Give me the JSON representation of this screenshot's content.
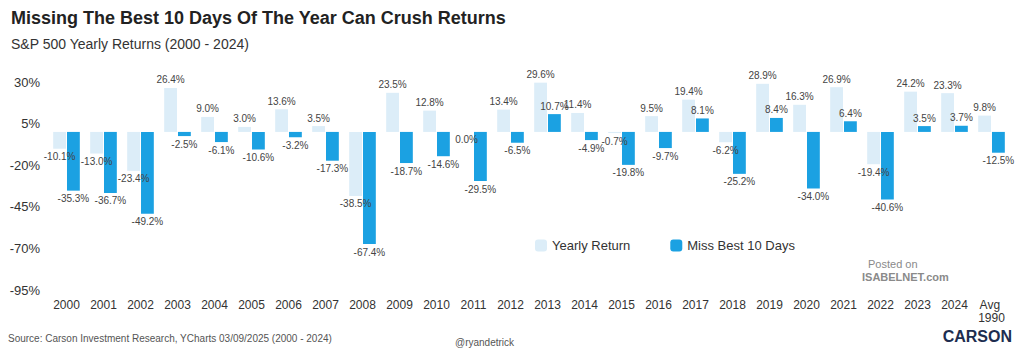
{
  "chart_data": {
    "type": "bar",
    "title": "Missing The Best 10 Days Of The Year Can Crush Returns",
    "subtitle": "S&P 500 Yearly Returns (2000 - 2024)",
    "categories": [
      "2000",
      "2001",
      "2002",
      "2003",
      "2004",
      "2005",
      "2006",
      "2007",
      "2008",
      "2009",
      "2010",
      "2011",
      "2012",
      "2013",
      "2014",
      "2015",
      "2016",
      "2017",
      "2018",
      "2019",
      "2020",
      "2021",
      "2022",
      "2023",
      "2024",
      "Avg 1990"
    ],
    "series": [
      {
        "name": "Yearly Return",
        "color": "#dcedf8",
        "values": [
          -10.1,
          -13.0,
          -23.4,
          26.4,
          9.0,
          3.0,
          13.6,
          3.5,
          -38.5,
          23.5,
          12.8,
          0.0,
          13.4,
          29.6,
          11.4,
          -0.7,
          9.5,
          19.4,
          -6.2,
          28.9,
          16.3,
          26.9,
          -19.4,
          24.2,
          23.3,
          9.8
        ],
        "value_labels": [
          "-10.1%",
          "-13.0%",
          "-23.4%",
          "26.4%",
          "9.0%",
          "3.0%",
          "13.6%",
          "3.5%",
          "-38.5%",
          "23.5%",
          "12.8%",
          "0.0%",
          "13.4%",
          "29.6%",
          "11.4%",
          "-0.7%",
          "9.5%",
          "19.4%",
          "-6.2%",
          "28.9%",
          "16.3%",
          "26.9%",
          "-19.4%",
          "24.2%",
          "23.3%",
          "9.8%"
        ]
      },
      {
        "name": "Miss Best 10 Days",
        "color": "#1ba1e2",
        "values": [
          -35.3,
          -36.7,
          -49.2,
          -2.5,
          -6.1,
          -10.6,
          -3.2,
          -17.3,
          -67.4,
          -18.7,
          -14.6,
          -29.5,
          -6.5,
          10.7,
          -4.9,
          -19.8,
          -9.7,
          8.1,
          -25.2,
          8.4,
          -34.0,
          6.4,
          -40.6,
          3.5,
          3.7,
          -12.5
        ],
        "value_labels": [
          "-35.3%",
          "-36.7%",
          "-49.2%",
          "-2.5%",
          "-6.1%",
          "-10.6%",
          "-3.2%",
          "-17.3%",
          "-67.4%",
          "-18.7%",
          "-14.6%",
          "-29.5%",
          "-6.5%",
          "10.7%",
          "-4.9%",
          "-19.8%",
          "-9.7%",
          "8.1%",
          "-25.2%",
          "8.4%",
          "-34.0%",
          "6.4%",
          "-40.6%",
          "3.5%",
          "3.7%",
          "-12.5%"
        ]
      }
    ],
    "ylim": [
      -95,
      30
    ],
    "yticks": [
      {
        "value": -95,
        "label": "-95%"
      },
      {
        "value": -70,
        "label": "-70%"
      },
      {
        "value": -45,
        "label": "-45%"
      },
      {
        "value": -20,
        "label": "-20%"
      },
      {
        "value": 5,
        "label": "5%"
      },
      {
        "value": 30,
        "label": "30%"
      }
    ],
    "grid": false,
    "legend": "bottom-right",
    "data_labels": true,
    "source": "Source: Carson Investment Research, YCharts 03/09/2025 (2000 - 2024)",
    "credit": "@ryandetrick",
    "watermark": [
      "Posted on",
      "ISABELNET.com"
    ],
    "logo": "CARSON"
  }
}
